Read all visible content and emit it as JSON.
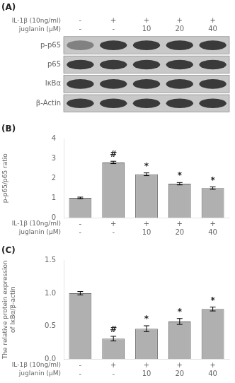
{
  "chart_data": [
    {
      "type": "blot",
      "title": "(A)",
      "categories": [
        [
          "-",
          "-"
        ],
        [
          "+",
          "-"
        ],
        [
          "+",
          "10"
        ],
        [
          "+",
          "20"
        ],
        [
          "+",
          "40"
        ]
      ],
      "xlabel": [
        "IL-1β (10ng/ml)",
        "juglanin (μM)"
      ],
      "series": [
        {
          "name": "p-p65",
          "values": [
            0.6,
            0.0,
            0.0,
            0.0,
            0.0
          ]
        },
        {
          "name": "p65",
          "values": [
            0.0,
            0.0,
            0.0,
            0.0,
            0.0
          ]
        },
        {
          "name": "IκBα",
          "values": [
            0.0,
            0.0,
            0.0,
            0.0,
            0.0
          ]
        },
        {
          "name": "β-Actin",
          "values": [
            0.0,
            0.0,
            0.0,
            0.0,
            0.0
          ]
        }
      ],
      "color": "#3a3a3a"
    },
    {
      "type": "bar",
      "title": "(B)",
      "ylabel": "p-p65/p65 ratio",
      "categories": [
        [
          "-",
          "-"
        ],
        [
          "+",
          "-"
        ],
        [
          "+",
          "10"
        ],
        [
          "+",
          "20"
        ],
        [
          "+",
          "40"
        ]
      ],
      "xlabel": [
        "IL-1β (10ng/ml)",
        "juglanin (μM)"
      ],
      "values": [
        1.0,
        2.8,
        2.2,
        1.72,
        1.5
      ],
      "errors": [
        0.04,
        0.06,
        0.07,
        0.06,
        0.06
      ],
      "annotations": [
        null,
        "#",
        "*",
        "*",
        "*"
      ],
      "color": "#b0b0b0",
      "ylim": [
        0,
        4
      ],
      "yticks": [
        0,
        1,
        2,
        3,
        4
      ],
      "grid": false
    },
    {
      "type": "bar",
      "title": "(C)",
      "ylabel": "The relative protein expression\nof IκBα/β-actin",
      "categories": [
        [
          "-",
          "-"
        ],
        [
          "+",
          "-"
        ],
        [
          "+",
          "10"
        ],
        [
          "+",
          "20"
        ],
        [
          "+",
          "40"
        ]
      ],
      "xlabel": [
        "IL-1β (10ng/ml)",
        "juglanin (μM)"
      ],
      "values": [
        1.0,
        0.31,
        0.46,
        0.57,
        0.76
      ],
      "errors": [
        0.025,
        0.035,
        0.045,
        0.045,
        0.03
      ],
      "annotations": [
        null,
        "#",
        "*",
        "*",
        "*"
      ],
      "color": "#b0b0b0",
      "ylim": [
        0,
        1.5
      ],
      "yticks": [
        {
          "value": 0,
          "label": "0.0"
        },
        0.5,
        {
          "value": 1,
          "label": "1.0"
        },
        1.5
      ],
      "grid": false
    }
  ]
}
